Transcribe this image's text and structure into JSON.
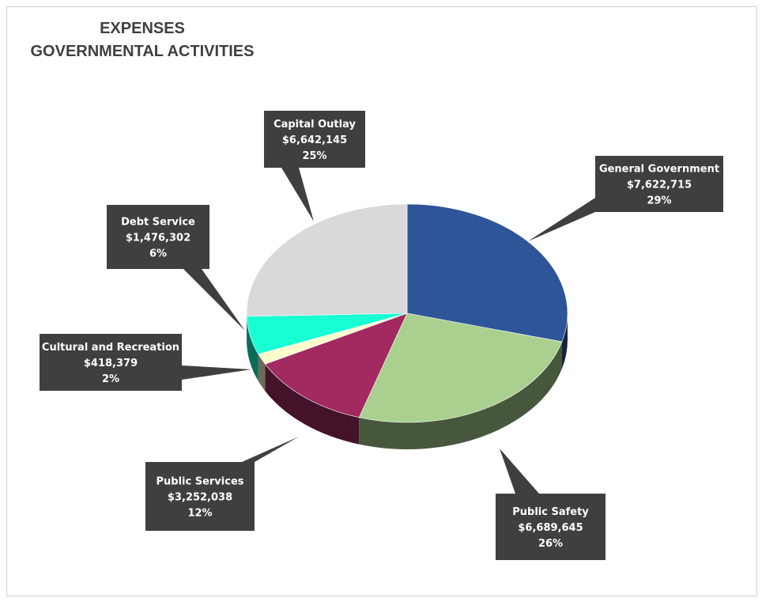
{
  "chart_data": {
    "type": "pie",
    "title": [
      "EXPENSES",
      "GOVERNMENTAL ACTIVITIES"
    ],
    "slices": [
      {
        "label": "General Government",
        "value_text": "$7,622,715",
        "value": 7622715,
        "percent": "29%",
        "color": "#2e5597"
      },
      {
        "label": "Public Safety",
        "value_text": "$6,689,645",
        "value": 6689645,
        "percent": "26%",
        "color": "#a9d08e"
      },
      {
        "label": "Public Services",
        "value_text": "$3,252,038",
        "value": 3252038,
        "percent": "12%",
        "color": "#a22a61"
      },
      {
        "label": "Cultural and Recreation",
        "value_text": "$418,379",
        "value": 418379,
        "percent": "2%",
        "color": "#fffccc"
      },
      {
        "label": "Debt Service",
        "value_text": "$1,476,302",
        "value": 1476302,
        "percent": "6%",
        "color": "#19ffd4"
      },
      {
        "label": "Capital Outlay",
        "value_text": "$6,642,145",
        "value": 6642145,
        "percent": "25%",
        "color": "#d9d9d9"
      }
    ],
    "legend": "none",
    "style": "3d-pie-with-callouts",
    "callout_color": "#3f3f3f"
  }
}
